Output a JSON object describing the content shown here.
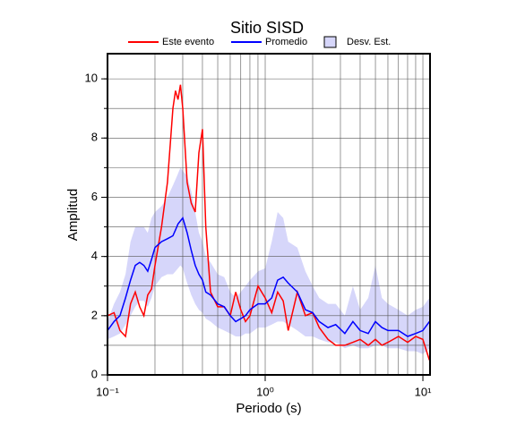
{
  "chart_data": {
    "type": "line",
    "title": "Sitio SISD",
    "x_label": "Periodo (s)",
    "y_label": "Amplitud",
    "log_x": true,
    "xlim": [
      0.1,
      11.1
    ],
    "ylim": [
      0,
      10.85
    ],
    "xticks": [
      {
        "value": 0.1,
        "label": "10⁻¹"
      },
      {
        "value": 1,
        "label": "10⁰"
      },
      {
        "value": 10,
        "label": "10¹"
      }
    ],
    "yticks": [
      0,
      2,
      4,
      6,
      8,
      10
    ],
    "xgrid": [
      0.2,
      0.3,
      0.4,
      0.5,
      0.6,
      0.7,
      0.8,
      0.9,
      2,
      3,
      4,
      5,
      6,
      7,
      8,
      9
    ],
    "ygrid": [
      1,
      2,
      3,
      4,
      5,
      6,
      7,
      8,
      9,
      10
    ],
    "x": [
      0.1,
      0.11,
      0.12,
      0.13,
      0.14,
      0.15,
      0.16,
      0.17,
      0.18,
      0.19,
      0.2,
      0.22,
      0.24,
      0.26,
      0.27,
      0.28,
      0.29,
      0.3,
      0.32,
      0.34,
      0.36,
      0.38,
      0.4,
      0.42,
      0.45,
      0.5,
      0.55,
      0.6,
      0.65,
      0.7,
      0.75,
      0.8,
      0.9,
      1.0,
      1.1,
      1.2,
      1.3,
      1.4,
      1.6,
      1.8,
      2.0,
      2.2,
      2.5,
      2.8,
      3.2,
      3.6,
      4.0,
      4.5,
      5.0,
      5.5,
      6.0,
      7.0,
      8.0,
      9.0,
      10.0,
      11.0
    ],
    "band": {
      "name": "Desv. Est.",
      "color": "#d6d6fa",
      "edge": "#000000",
      "upper": [
        1.8,
        2.4,
        2.8,
        3.4,
        4.5,
        5.0,
        5.0,
        5.0,
        4.8,
        5.3,
        5.5,
        5.7,
        6.0,
        6.4,
        6.6,
        6.8,
        7.0,
        6.9,
        6.7,
        6.2,
        5.5,
        4.8,
        4.5,
        4.0,
        3.8,
        3.4,
        3.3,
        2.8,
        2.6,
        2.8,
        3.0,
        3.2,
        3.5,
        3.6,
        4.5,
        5.5,
        5.3,
        4.5,
        4.3,
        3.5,
        3.0,
        2.6,
        2.4,
        2.4,
        2.0,
        3.0,
        2.2,
        2.6,
        3.7,
        2.6,
        2.4,
        2.2,
        2.0,
        2.2,
        2.3,
        2.6
      ],
      "lower": [
        1.2,
        1.3,
        1.4,
        1.7,
        2.0,
        2.3,
        2.5,
        2.5,
        2.3,
        2.6,
        3.0,
        3.3,
        3.4,
        3.4,
        3.5,
        3.6,
        3.7,
        3.6,
        3.1,
        2.7,
        2.4,
        2.2,
        2.1,
        1.9,
        1.8,
        1.6,
        1.5,
        1.4,
        1.3,
        1.3,
        1.4,
        1.4,
        1.6,
        1.6,
        1.7,
        1.8,
        1.8,
        1.7,
        1.5,
        1.3,
        1.3,
        1.2,
        1.1,
        1.1,
        0.9,
        1.0,
        0.9,
        0.9,
        1.0,
        1.0,
        0.9,
        0.9,
        0.8,
        0.8,
        0.7,
        0.9
      ]
    },
    "series": [
      {
        "name": "Este evento",
        "color": "#ff0000",
        "values": [
          2.0,
          2.1,
          1.5,
          1.3,
          2.4,
          2.8,
          2.3,
          2.0,
          2.7,
          2.9,
          3.7,
          5.0,
          6.5,
          9.0,
          9.6,
          9.3,
          9.8,
          9.0,
          6.5,
          5.8,
          5.5,
          7.5,
          8.3,
          5.0,
          2.8,
          2.3,
          2.3,
          2.0,
          2.8,
          2.2,
          1.8,
          2.0,
          3.0,
          2.6,
          2.1,
          2.8,
          2.5,
          1.5,
          2.8,
          2.0,
          2.1,
          1.6,
          1.2,
          1.0,
          1.0,
          1.1,
          1.2,
          1.0,
          1.2,
          1.0,
          1.1,
          1.3,
          1.1,
          1.3,
          1.2,
          0.5
        ]
      },
      {
        "name": "Promedio",
        "color": "#0000ff",
        "values": [
          1.5,
          1.8,
          2.0,
          2.6,
          3.2,
          3.7,
          3.8,
          3.7,
          3.5,
          3.9,
          4.3,
          4.5,
          4.6,
          4.7,
          4.9,
          5.1,
          5.2,
          5.3,
          4.8,
          4.2,
          3.7,
          3.4,
          3.2,
          2.8,
          2.7,
          2.4,
          2.3,
          2.0,
          1.8,
          1.9,
          2.0,
          2.2,
          2.4,
          2.4,
          2.6,
          3.2,
          3.3,
          3.1,
          2.8,
          2.2,
          2.1,
          1.8,
          1.6,
          1.7,
          1.4,
          1.8,
          1.5,
          1.4,
          1.8,
          1.6,
          1.5,
          1.5,
          1.3,
          1.4,
          1.5,
          1.8
        ]
      }
    ]
  }
}
